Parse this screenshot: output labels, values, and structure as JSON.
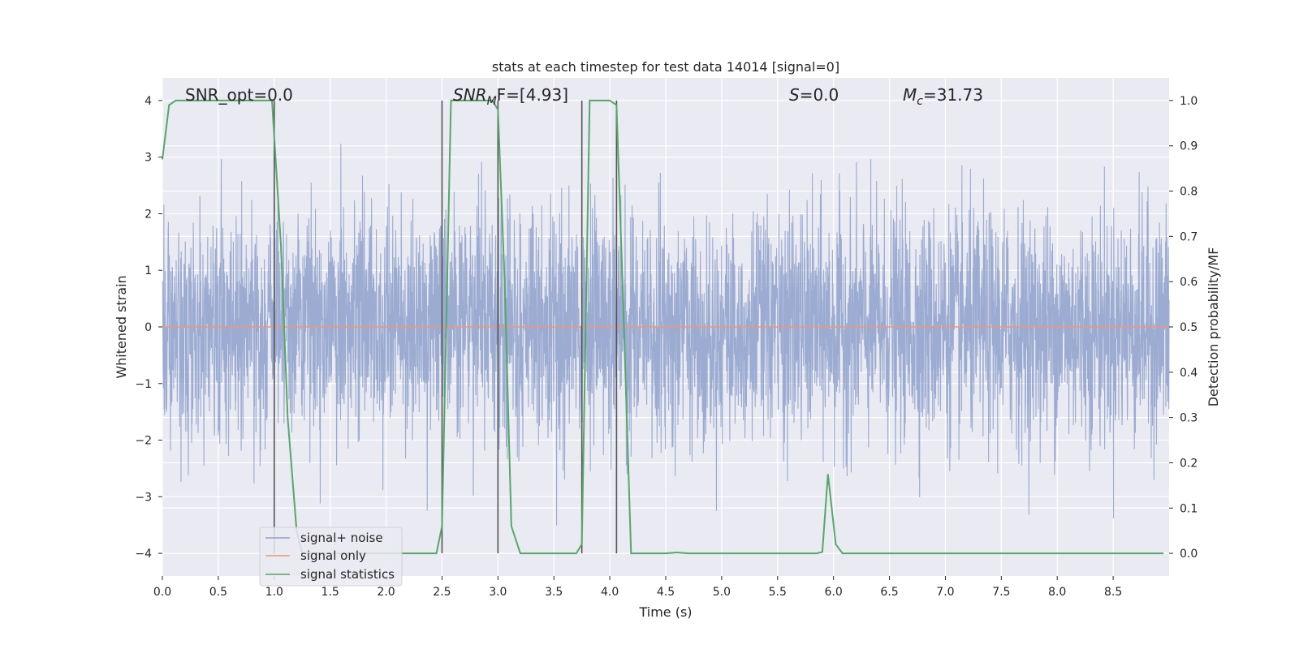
{
  "chart_data": {
    "type": "line",
    "title": "stats at each timestep for test data 14014 [signal=0]",
    "xlabel": "Time (s)",
    "ylabel_left": "Whitened strain",
    "ylabel_right": "Detection probability/MF",
    "xlim": [
      0.0,
      9.0
    ],
    "ylim_left": [
      -4.4,
      4.4
    ],
    "ylim_right": [
      -0.05,
      1.05
    ],
    "x_ticks": [
      "0.0",
      "0.5",
      "1.0",
      "1.5",
      "2.0",
      "2.5",
      "3.0",
      "3.5",
      "4.0",
      "4.5",
      "5.0",
      "5.5",
      "6.0",
      "6.5",
      "7.0",
      "7.5",
      "8.0",
      "8.5"
    ],
    "y_left_ticks": [
      "4",
      "3",
      "2",
      "1",
      "0",
      "−1",
      "−2",
      "−3",
      "−4"
    ],
    "y_right_ticks": [
      "1.0",
      "0.9",
      "0.8",
      "0.7",
      "0.6",
      "0.5",
      "0.4",
      "0.3",
      "0.2",
      "0.1",
      "0.0"
    ],
    "grid": true,
    "background": "#eaeaf2",
    "annotations": {
      "snr_opt": "SNR_opt=0.0",
      "snr_mf_main": "SNR",
      "snr_mf_sub": "M",
      "snr_mf_rest": "F=[4.93]",
      "s_main": "S",
      "s_rest": "=0.0",
      "mc_main": "M",
      "mc_sub": "c",
      "mc_rest": "=31.73"
    },
    "vlines": [
      1.0,
      2.5,
      3.0,
      3.75,
      4.06
    ],
    "series": [
      {
        "name": "signal+ noise",
        "color": "#8da0cb",
        "axis": "left",
        "amplitude_approx": 2.5,
        "x_range": [
          0.0,
          9.0
        ]
      },
      {
        "name": "signal only",
        "color": "#e9977a",
        "axis": "left",
        "x": [
          0.0,
          9.0
        ],
        "y": [
          0.0,
          0.0
        ]
      },
      {
        "name": "signal statistics",
        "color": "#55a868",
        "axis": "right",
        "x": [
          0.0,
          0.06,
          0.12,
          0.2,
          0.5,
          0.98,
          1.06,
          1.12,
          1.2,
          1.25,
          2.45,
          2.5,
          2.58,
          2.75,
          2.95,
          3.0,
          3.06,
          3.12,
          3.2,
          3.5,
          3.7,
          3.75,
          3.82,
          4.0,
          4.06,
          4.12,
          4.19,
          4.5,
          4.6,
          4.7,
          5.0,
          5.85,
          5.9,
          5.95,
          6.02,
          6.08,
          6.5,
          7.0,
          8.0,
          8.95
        ],
        "y": [
          0.87,
          0.99,
          1.0,
          1.0,
          1.0,
          1.0,
          0.68,
          0.3,
          0.05,
          0.0,
          0.0,
          0.06,
          1.0,
          1.0,
          1.0,
          0.98,
          0.6,
          0.06,
          0.0,
          0.0,
          0.0,
          0.02,
          1.0,
          1.0,
          0.99,
          0.55,
          0.0,
          0.0,
          0.002,
          0.0,
          0.0,
          0.0,
          0.003,
          0.175,
          0.02,
          0.0,
          0.0,
          0.0,
          0.0,
          0.0
        ]
      }
    ],
    "legend_position": "lower-left"
  }
}
